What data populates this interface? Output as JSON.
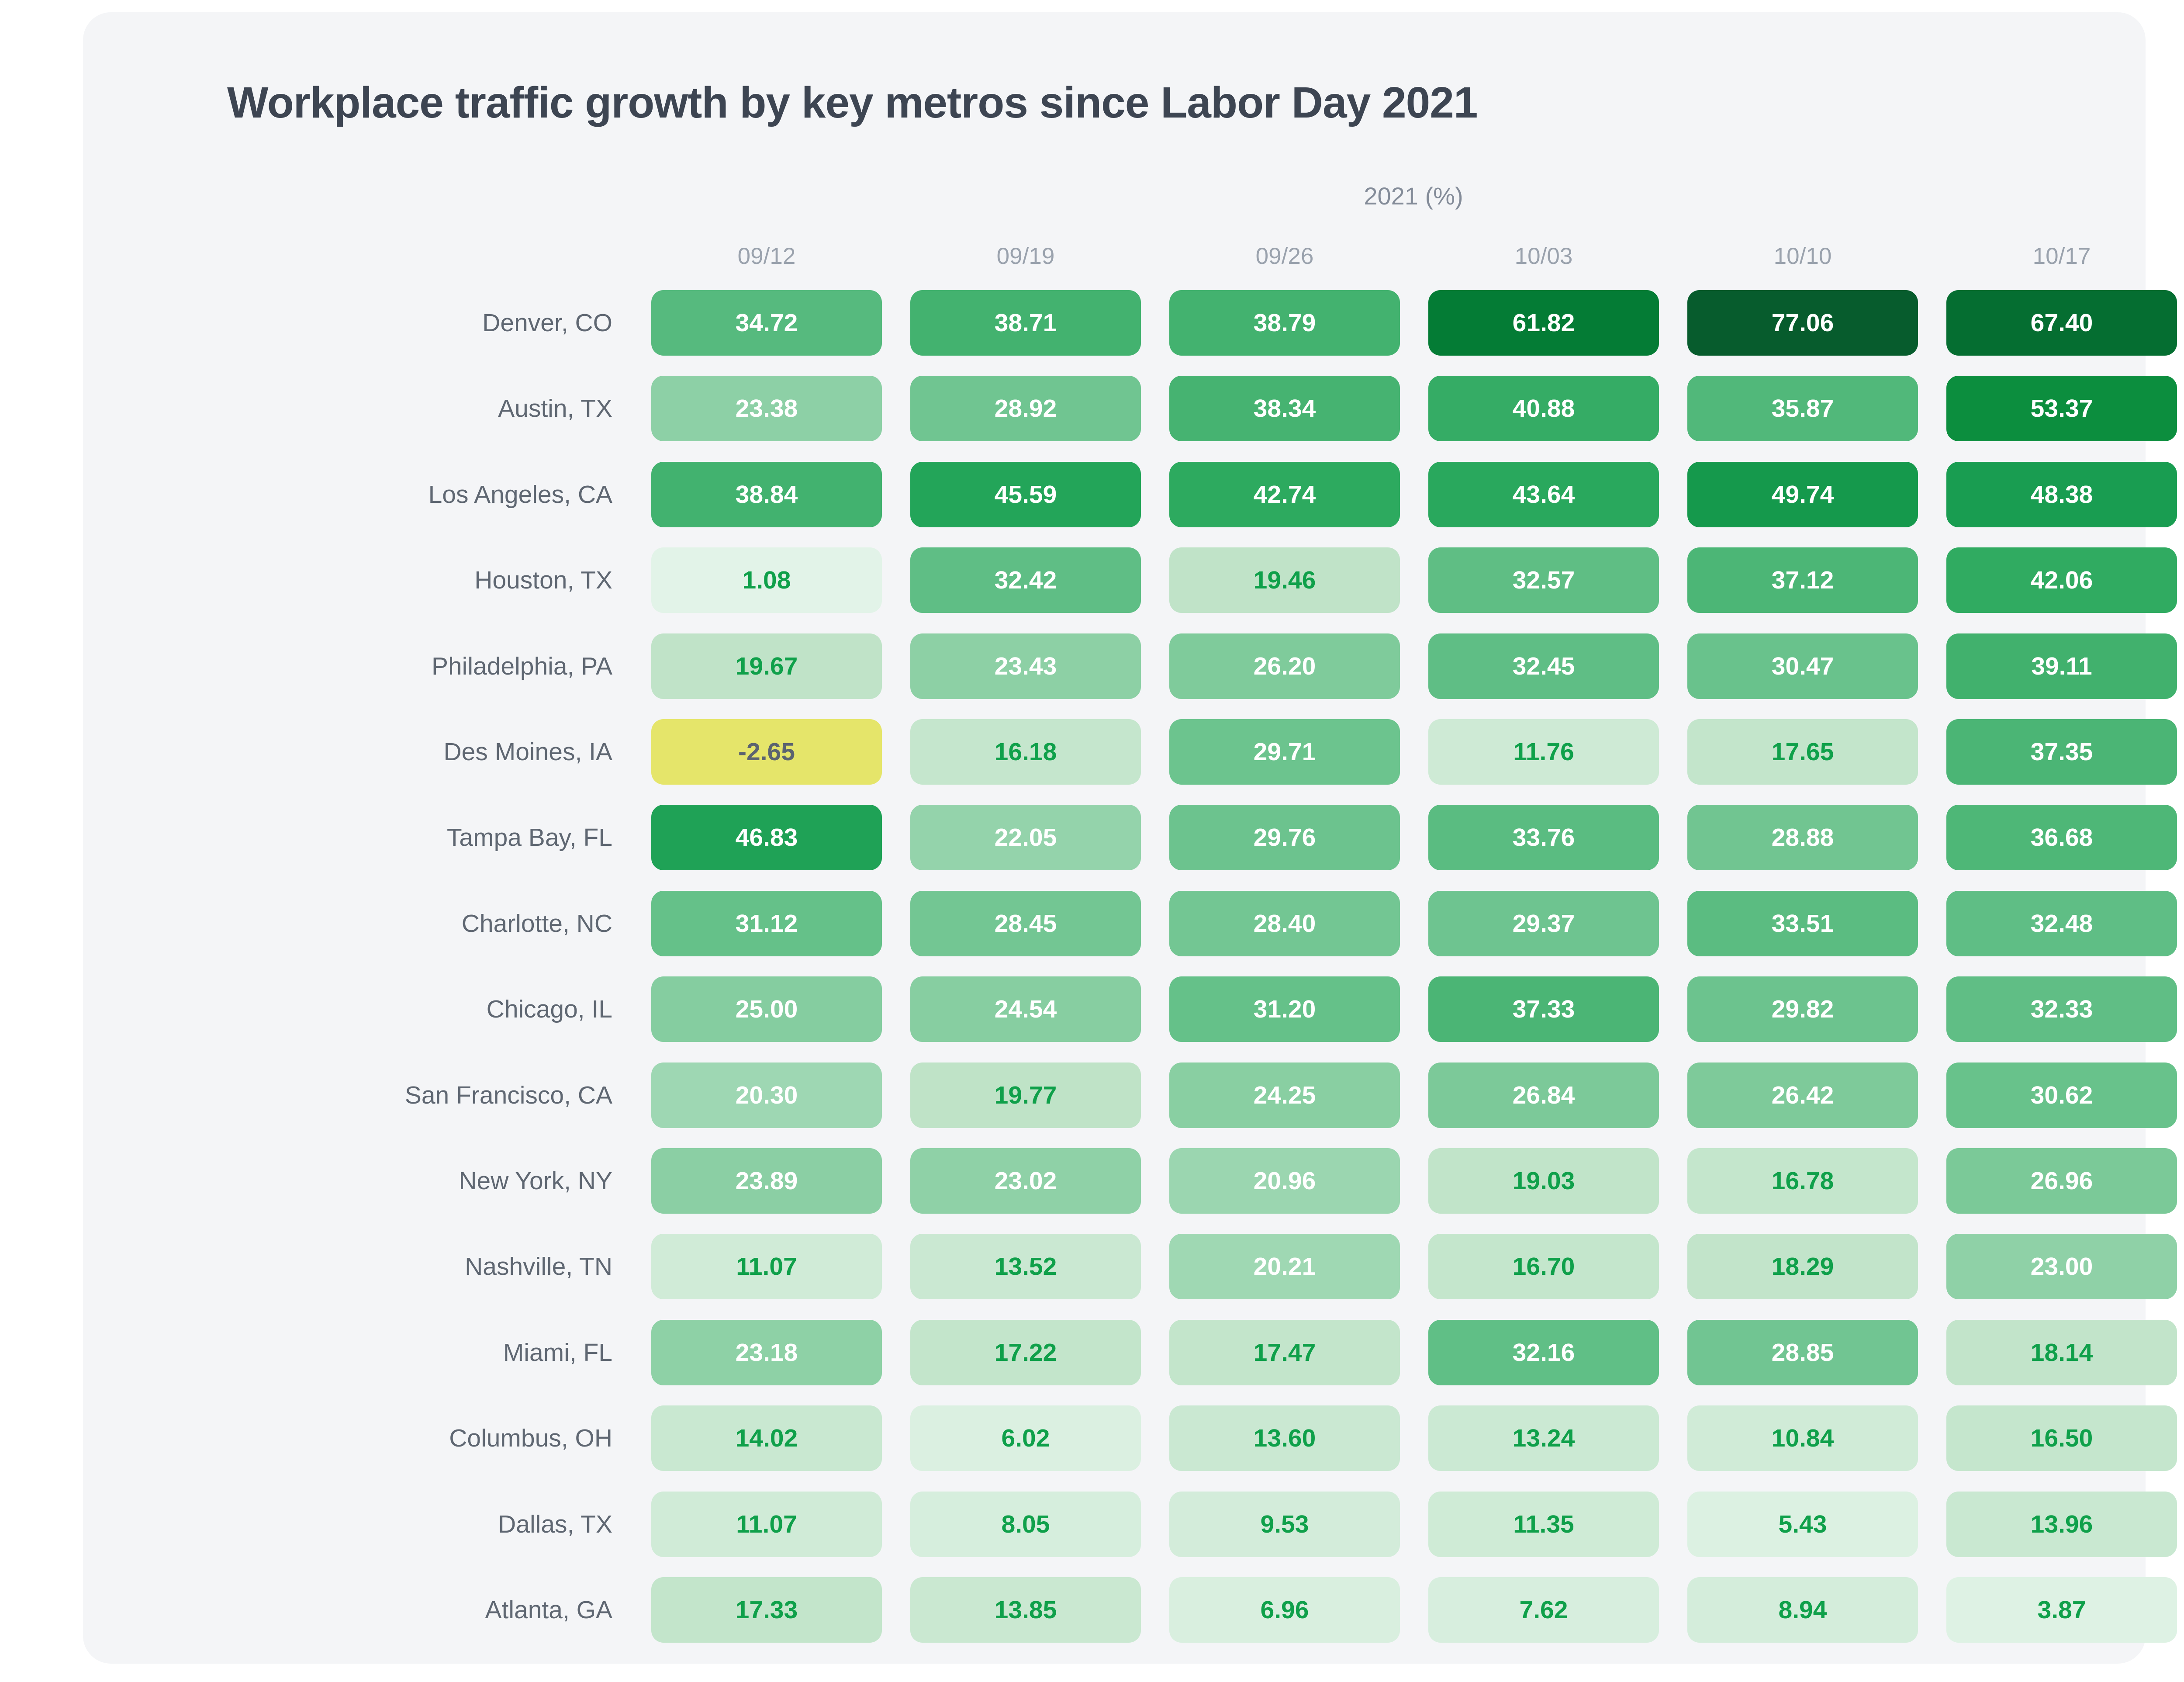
{
  "page": {
    "title": "Workplace traffic growth by key metros since Labor Day 2021",
    "unit_label": "2021 (%)"
  },
  "chart_data": {
    "type": "heatmap",
    "title": "Workplace traffic growth by key metros since Labor Day 2021",
    "unit_label": "2021 (%)",
    "columns": [
      "09/12",
      "09/19",
      "09/26",
      "10/03",
      "10/10",
      "10/17"
    ],
    "rows": [
      "Denver, CO",
      "Austin, TX",
      "Los Angeles, CA",
      "Houston, TX",
      "Philadelphia, PA",
      "Des Moines, IA",
      "Tampa Bay, FL",
      "Charlotte, NC",
      "Chicago, IL",
      "San Francisco, CA",
      "New York, NY",
      "Nashville, TN",
      "Miami, FL",
      "Columbus, OH",
      "Dallas, TX",
      "Atlanta, GA"
    ],
    "values": [
      [
        34.72,
        38.71,
        38.79,
        61.82,
        77.06,
        67.4
      ],
      [
        23.38,
        28.92,
        38.34,
        40.88,
        35.87,
        53.37
      ],
      [
        38.84,
        45.59,
        42.74,
        43.64,
        49.74,
        48.38
      ],
      [
        1.08,
        32.42,
        19.46,
        32.57,
        37.12,
        42.06
      ],
      [
        19.67,
        23.43,
        26.2,
        32.45,
        30.47,
        39.11
      ],
      [
        -2.65,
        16.18,
        29.71,
        11.76,
        17.65,
        37.35
      ],
      [
        46.83,
        22.05,
        29.76,
        33.76,
        28.88,
        36.68
      ],
      [
        31.12,
        28.45,
        28.4,
        29.37,
        33.51,
        32.48
      ],
      [
        25.0,
        24.54,
        31.2,
        37.33,
        29.82,
        32.33
      ],
      [
        20.3,
        19.77,
        24.25,
        26.84,
        26.42,
        30.62
      ],
      [
        23.89,
        23.02,
        20.96,
        19.03,
        16.78,
        26.96
      ],
      [
        11.07,
        13.52,
        20.21,
        16.7,
        18.29,
        23.0
      ],
      [
        23.18,
        17.22,
        17.47,
        32.16,
        28.85,
        18.14
      ],
      [
        14.02,
        6.02,
        13.6,
        13.24,
        10.84,
        16.5
      ],
      [
        11.07,
        8.05,
        9.53,
        11.35,
        5.43,
        13.96
      ],
      [
        17.33,
        13.85,
        6.96,
        7.62,
        8.94,
        3.87
      ]
    ],
    "value_decimals": 2,
    "colorscale": {
      "negative": "#e5e56a",
      "stops": [
        [
          0,
          [
            227,
            244,
            233
          ]
        ],
        [
          5,
          [
            221,
            241,
            227
          ]
        ],
        [
          10,
          [
            210,
            236,
            217
          ]
        ],
        [
          15,
          [
            199,
            231,
            207
          ]
        ],
        [
          19.99,
          [
            191,
            227,
            199
          ]
        ],
        [
          20,
          [
            160,
            216,
            180
          ]
        ],
        [
          23,
          [
            143,
            209,
            167
          ]
        ],
        [
          26,
          [
            128,
            203,
            156
          ]
        ],
        [
          29,
          [
            112,
            197,
            145
          ]
        ],
        [
          32,
          [
            97,
            191,
            134
          ]
        ],
        [
          35,
          [
            85,
            186,
            125
          ]
        ],
        [
          38,
          [
            72,
            180,
            115
          ]
        ],
        [
          41,
          [
            52,
            172,
            100
          ]
        ],
        [
          44,
          [
            40,
            168,
            92
          ]
        ],
        [
          47,
          [
            30,
            162,
            86
          ]
        ],
        [
          50,
          [
            20,
            152,
            75
          ]
        ],
        [
          54,
          [
            10,
            140,
            60
          ]
        ],
        [
          58,
          [
            6,
            130,
            55
          ]
        ],
        [
          62,
          [
            4,
            124,
            53
          ]
        ],
        [
          68,
          [
            5,
            109,
            49
          ]
        ],
        [
          77,
          [
            7,
            92,
            45
          ]
        ]
      ],
      "legend_visible": false
    },
    "text_rules": {
      "white_threshold": 20,
      "white": "#ffffff",
      "green": "#0fa04a",
      "negative": "#5b6370"
    }
  }
}
